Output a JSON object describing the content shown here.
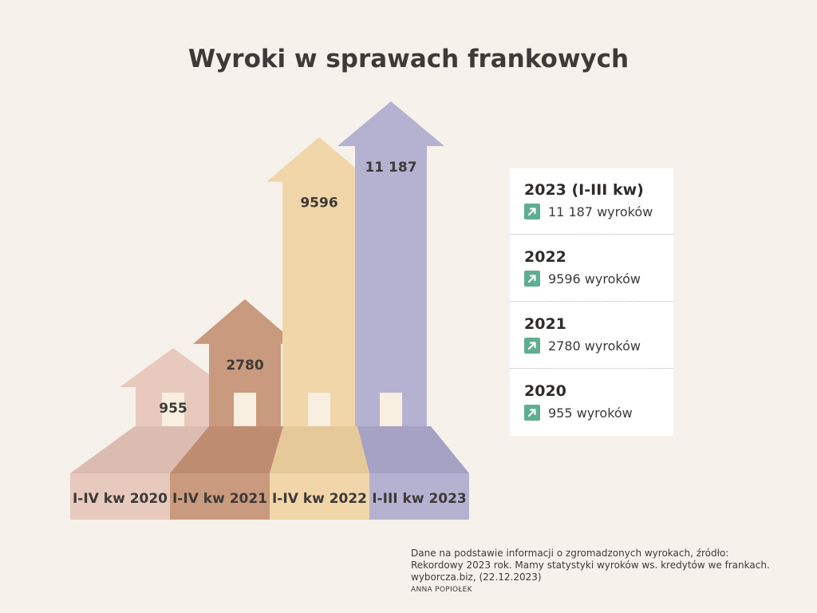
{
  "title": "Wyroki w sprawach frankowych",
  "chart_data": {
    "type": "bar",
    "title": "Wyroki w sprawach frankowych",
    "categories": [
      "I-IV kw 2020",
      "I-IV kw 2021",
      "I-IV kw 2022",
      "I-III kw 2023"
    ],
    "values": [
      955,
      2780,
      9596,
      11187
    ],
    "value_labels": [
      "955",
      "2780",
      "9596",
      "11 187"
    ],
    "colors": [
      "#e8c9bd",
      "#c99a7e",
      "#f1d6aa",
      "#b5b2d1"
    ],
    "base_colors": [
      "#dcbcb0",
      "#be8c70",
      "#e6c998",
      "#a6a2c4"
    ],
    "ylim": [
      0,
      11187
    ]
  },
  "legend": {
    "items": [
      {
        "year": "2023 (I-III kw)",
        "text": "11 187 wyroków"
      },
      {
        "year": "2022",
        "text": "9596 wyroków"
      },
      {
        "year": "2021",
        "text": "2780 wyroków"
      },
      {
        "year": "2020",
        "text": "955 wyroków"
      }
    ]
  },
  "source": {
    "line1": "Dane na podstawie informacji o zgromadzonych wyrokach, źródło:",
    "line2": "Rekordowy 2023 rok. Mamy statystyki wyroków ws. kredytów we frankach.",
    "line3": "wyborcza.biz, (22.12.2023)",
    "author": "ANNA POPIOŁEK"
  },
  "icons": {
    "legend_badge": "arrow-up-right-icon",
    "badge_color": "#5fae8f"
  }
}
